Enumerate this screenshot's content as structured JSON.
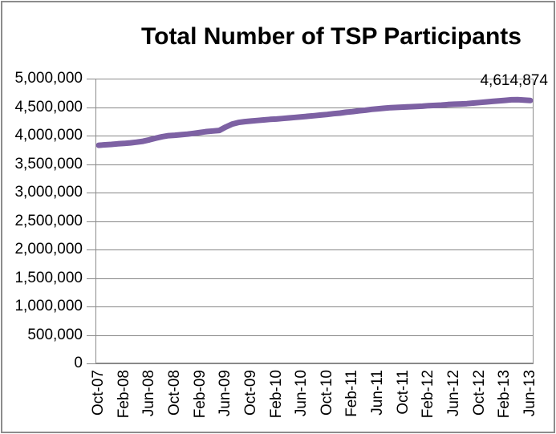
{
  "chart_data": {
    "type": "line",
    "title": "Total Number of TSP Participants",
    "categories": [
      "Oct-07",
      "Nov-07",
      "Dec-07",
      "Jan-08",
      "Feb-08",
      "Mar-08",
      "Apr-08",
      "May-08",
      "Jun-08",
      "Jul-08",
      "Aug-08",
      "Sep-08",
      "Oct-08",
      "Nov-08",
      "Dec-08",
      "Jan-09",
      "Feb-09",
      "Mar-09",
      "Apr-09",
      "May-09",
      "Jun-09",
      "Jul-09",
      "Aug-09",
      "Sep-09",
      "Oct-09",
      "Nov-09",
      "Dec-09",
      "Jan-10",
      "Feb-10",
      "Mar-10",
      "Apr-10",
      "May-10",
      "Jun-10",
      "Jul-10",
      "Aug-10",
      "Sep-10",
      "Oct-10",
      "Nov-10",
      "Dec-10",
      "Jan-11",
      "Feb-11",
      "Mar-11",
      "Apr-11",
      "May-11",
      "Jun-11",
      "Jul-11",
      "Aug-11",
      "Sep-11",
      "Oct-11",
      "Nov-11",
      "Dec-11",
      "Jan-12",
      "Feb-12",
      "Mar-12",
      "Apr-12",
      "May-12",
      "Jun-12",
      "Jul-12",
      "Aug-12",
      "Sep-12",
      "Oct-12",
      "Nov-12",
      "Dec-12",
      "Jan-13",
      "Feb-13",
      "Mar-13",
      "Apr-13",
      "May-13",
      "Jun-13"
    ],
    "values": [
      3830000,
      3838000,
      3845000,
      3855000,
      3862000,
      3872000,
      3885000,
      3900000,
      3925000,
      3955000,
      3980000,
      3998000,
      4005000,
      4015000,
      4025000,
      4040000,
      4055000,
      4070000,
      4080000,
      4090000,
      4150000,
      4200000,
      4230000,
      4245000,
      4255000,
      4265000,
      4275000,
      4285000,
      4290000,
      4300000,
      4310000,
      4320000,
      4330000,
      4340000,
      4350000,
      4360000,
      4370000,
      4385000,
      4395000,
      4410000,
      4420000,
      4435000,
      4445000,
      4460000,
      4470000,
      4480000,
      4490000,
      4495000,
      4500000,
      4505000,
      4510000,
      4515000,
      4525000,
      4530000,
      4535000,
      4545000,
      4550000,
      4555000,
      4560000,
      4570000,
      4580000,
      4590000,
      4600000,
      4608000,
      4618000,
      4628000,
      4630000,
      4622000,
      4614874
    ],
    "x_tick_labels": [
      "Oct-07",
      "Feb-08",
      "Jun-08",
      "Oct-08",
      "Feb-09",
      "Jun-09",
      "Oct-09",
      "Feb-10",
      "Jun-10",
      "Oct-10",
      "Feb-11",
      "Jun-11",
      "Oct-11",
      "Feb-12",
      "Jun-12",
      "Oct-12",
      "Feb-13",
      "Jun-13"
    ],
    "x_tick_step": 4,
    "y_ticks": [
      {
        "value": 0,
        "label": "0"
      },
      {
        "value": 500000,
        "label": "500,000"
      },
      {
        "value": 1000000,
        "label": "1,000,000"
      },
      {
        "value": 1500000,
        "label": "1,500,000"
      },
      {
        "value": 2000000,
        "label": "2,000,000"
      },
      {
        "value": 2500000,
        "label": "2,500,000"
      },
      {
        "value": 3000000,
        "label": "3,000,000"
      },
      {
        "value": 3500000,
        "label": "3,500,000"
      },
      {
        "value": 4000000,
        "label": "4,000,000"
      },
      {
        "value": 4500000,
        "label": "4,500,000"
      },
      {
        "value": 5000000,
        "label": "5,000,000"
      }
    ],
    "ylim": [
      0,
      5000000
    ],
    "grid": "horizontal",
    "legend": "none",
    "annotation": {
      "text": "4,614,874",
      "position": "end-of-line"
    },
    "colors": {
      "line": "#7d61a3",
      "grid": "#878787",
      "axis": "#8c8c8c",
      "text": "#000000"
    }
  }
}
